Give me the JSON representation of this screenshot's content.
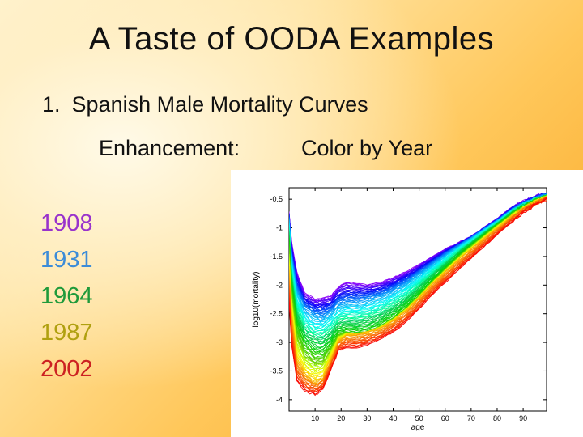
{
  "slide": {
    "title": "A Taste of OODA Examples",
    "item_number": "1.",
    "item_text": "Spanish Male Mortality Curves",
    "enhancement_label": "Enhancement:",
    "enhancement_value": "Color by Year",
    "years": [
      {
        "label": "1908",
        "color": "#9933cc"
      },
      {
        "label": "1931",
        "color": "#3c8cd8"
      },
      {
        "label": "1964",
        "color": "#1f9a3a"
      },
      {
        "label": "1987",
        "color": "#b0a010"
      },
      {
        "label": "2002",
        "color": "#cc2222"
      }
    ]
  },
  "chart_data": {
    "type": "line",
    "xlabel": "age",
    "ylabel": "log10(mortality)",
    "xlim": [
      0,
      99
    ],
    "ylim": [
      -4.2,
      -0.3
    ],
    "x_ticks": [
      "10",
      "20",
      "30",
      "40",
      "50",
      "60",
      "70",
      "80",
      "90"
    ],
    "y_ticks": [
      "-0.5",
      "-1",
      "-1.5",
      "-2",
      "-2.5",
      "-3",
      "-3.5",
      "-4"
    ],
    "year_range": [
      1908,
      2002
    ],
    "color_scale": "rainbow: purple (1908) through blue, green, yellow to red (2002)",
    "series_anchor_ages": [
      0,
      1,
      3,
      6,
      10,
      13,
      16,
      19,
      22,
      26,
      30,
      35,
      40,
      45,
      50,
      55,
      60,
      65,
      70,
      75,
      80,
      85,
      90,
      95,
      99
    ],
    "series": [
      {
        "year": 1908,
        "values": [
          -0.72,
          -1.25,
          -1.78,
          -2.15,
          -2.25,
          -2.22,
          -2.2,
          -2.02,
          -1.95,
          -1.97,
          -1.99,
          -1.95,
          -1.87,
          -1.77,
          -1.64,
          -1.5,
          -1.37,
          -1.26,
          -1.15,
          -0.99,
          -0.84,
          -0.66,
          -0.55,
          -0.45,
          -0.4
        ]
      },
      {
        "year": 1931,
        "values": [
          -0.82,
          -1.48,
          -2.05,
          -2.38,
          -2.5,
          -2.52,
          -2.45,
          -2.32,
          -2.28,
          -2.27,
          -2.23,
          -2.17,
          -2.07,
          -1.94,
          -1.78,
          -1.62,
          -1.46,
          -1.31,
          -1.17,
          -1.02,
          -0.87,
          -0.7,
          -0.58,
          -0.48,
          -0.43
        ]
      },
      {
        "year": 1964,
        "values": [
          -1.25,
          -2.05,
          -2.72,
          -3.05,
          -3.2,
          -3.2,
          -3.05,
          -2.85,
          -2.82,
          -2.85,
          -2.82,
          -2.72,
          -2.58,
          -2.4,
          -2.18,
          -1.94,
          -1.72,
          -1.5,
          -1.31,
          -1.13,
          -0.95,
          -0.78,
          -0.64,
          -0.52,
          -0.46
        ]
      },
      {
        "year": 1987,
        "values": [
          -1.75,
          -2.5,
          -3.3,
          -3.55,
          -3.7,
          -3.62,
          -3.3,
          -2.97,
          -2.87,
          -2.85,
          -2.82,
          -2.75,
          -2.62,
          -2.44,
          -2.22,
          -1.98,
          -1.77,
          -1.56,
          -1.37,
          -1.18,
          -1.0,
          -0.82,
          -0.67,
          -0.55,
          -0.48
        ]
      },
      {
        "year": 2002,
        "values": [
          -2.3,
          -3.05,
          -3.68,
          -3.85,
          -3.92,
          -3.82,
          -3.5,
          -3.15,
          -3.1,
          -3.1,
          -3.05,
          -2.95,
          -2.82,
          -2.65,
          -2.42,
          -2.17,
          -1.96,
          -1.74,
          -1.53,
          -1.33,
          -1.12,
          -0.92,
          -0.73,
          -0.59,
          -0.5
        ]
      }
    ]
  }
}
